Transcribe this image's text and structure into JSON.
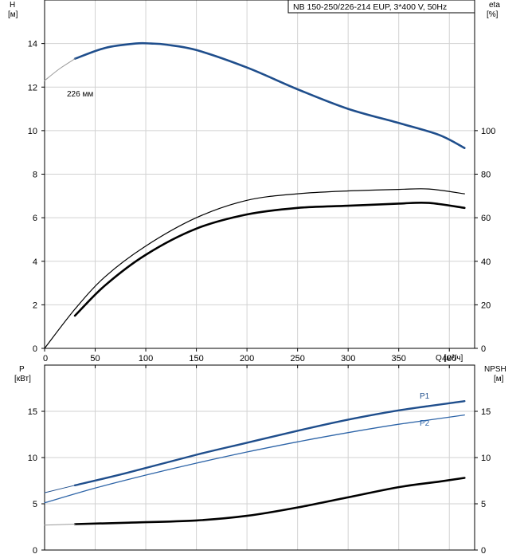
{
  "chart_data": [
    {
      "type": "line",
      "title": "NB 150-250/226-214 EUP, 3*400 V, 50Hz",
      "ylabel_left": [
        "H",
        "[м]"
      ],
      "ylabel_right": [
        "eta",
        "[%]"
      ],
      "xlabel": "Q [м³/ч]",
      "xlim": [
        0,
        425
      ],
      "ylim_left": [
        0,
        16
      ],
      "ylim_right": [
        0,
        160
      ],
      "x_ticks": [
        0,
        50,
        100,
        150,
        200,
        250,
        300,
        350,
        400
      ],
      "y_ticks_left": [
        0,
        2,
        4,
        6,
        8,
        10,
        12,
        14
      ],
      "y_ticks_right": [
        0,
        20,
        40,
        60,
        80,
        100
      ],
      "grid": true,
      "annotations": [
        {
          "text": "226 мм",
          "x": 30,
          "y": 13.2
        }
      ],
      "series": [
        {
          "role": "head",
          "axis": "left",
          "color": "#1f4e8c",
          "width": 2.6,
          "x": [
            30,
            60,
            90,
            105,
            120,
            150,
            200,
            250,
            300,
            350,
            390,
            415
          ],
          "y": [
            13.3,
            13.8,
            14.0,
            14.0,
            13.95,
            13.7,
            12.9,
            11.9,
            11.0,
            10.35,
            9.8,
            9.2
          ]
        },
        {
          "role": "head-extension",
          "axis": "left",
          "color": "#9a9a9a",
          "width": 1,
          "x": [
            0,
            15,
            30
          ],
          "y": [
            12.3,
            12.85,
            13.3
          ]
        },
        {
          "role": "efficiency-thin",
          "axis": "right",
          "color": "#000000",
          "width": 1.2,
          "x": [
            0,
            30,
            60,
            100,
            150,
            200,
            250,
            300,
            350,
            380,
            415
          ],
          "y": [
            0,
            18,
            33,
            47,
            60,
            68,
            71,
            72.3,
            73,
            73.2,
            71
          ]
        },
        {
          "role": "efficiency-thick",
          "axis": "right",
          "color": "#000000",
          "width": 2.6,
          "x": [
            30,
            60,
            100,
            150,
            200,
            250,
            300,
            350,
            380,
            415
          ],
          "y": [
            15,
            29,
            43,
            55,
            61.5,
            64.5,
            65.5,
            66.5,
            66.8,
            64.5
          ]
        }
      ]
    },
    {
      "type": "line",
      "ylabel_left": [
        "P",
        "[кВт]"
      ],
      "ylabel_right": [
        "NPSH",
        "[м]"
      ],
      "xlim": [
        0,
        425
      ],
      "ylim_left": [
        0,
        20
      ],
      "ylim_right": [
        0,
        20
      ],
      "y_ticks_left": [
        0,
        5,
        10,
        15
      ],
      "y_ticks_right": [
        0,
        5,
        10,
        15
      ],
      "grid": true,
      "series": [
        {
          "name": "P1",
          "axis": "left",
          "color": "#1f4e8c",
          "width": 2.4,
          "x": [
            30,
            80,
            150,
            200,
            250,
            300,
            350,
            415
          ],
          "y": [
            7.0,
            8.3,
            10.3,
            11.6,
            12.9,
            14.1,
            15.1,
            16.1
          ]
        },
        {
          "role": "P1-extension",
          "axis": "left",
          "color": "#1f4e8c",
          "width": 1,
          "x": [
            0,
            30
          ],
          "y": [
            6.2,
            7.0
          ]
        },
        {
          "name": "P2",
          "axis": "left",
          "color": "#2e65a8",
          "width": 1.3,
          "x": [
            0,
            50,
            100,
            150,
            200,
            250,
            300,
            350,
            415
          ],
          "y": [
            5.1,
            6.7,
            8.1,
            9.4,
            10.6,
            11.7,
            12.7,
            13.6,
            14.6
          ]
        },
        {
          "role": "npsh",
          "axis": "right",
          "color": "#000000",
          "width": 2.6,
          "x": [
            30,
            80,
            150,
            200,
            250,
            300,
            350,
            390,
            415
          ],
          "y": [
            2.8,
            2.95,
            3.2,
            3.7,
            4.6,
            5.7,
            6.8,
            7.4,
            7.8
          ]
        },
        {
          "role": "npsh-extension",
          "axis": "right",
          "color": "#9a9a9a",
          "width": 1,
          "x": [
            0,
            30
          ],
          "y": [
            2.7,
            2.8
          ]
        }
      ]
    }
  ]
}
